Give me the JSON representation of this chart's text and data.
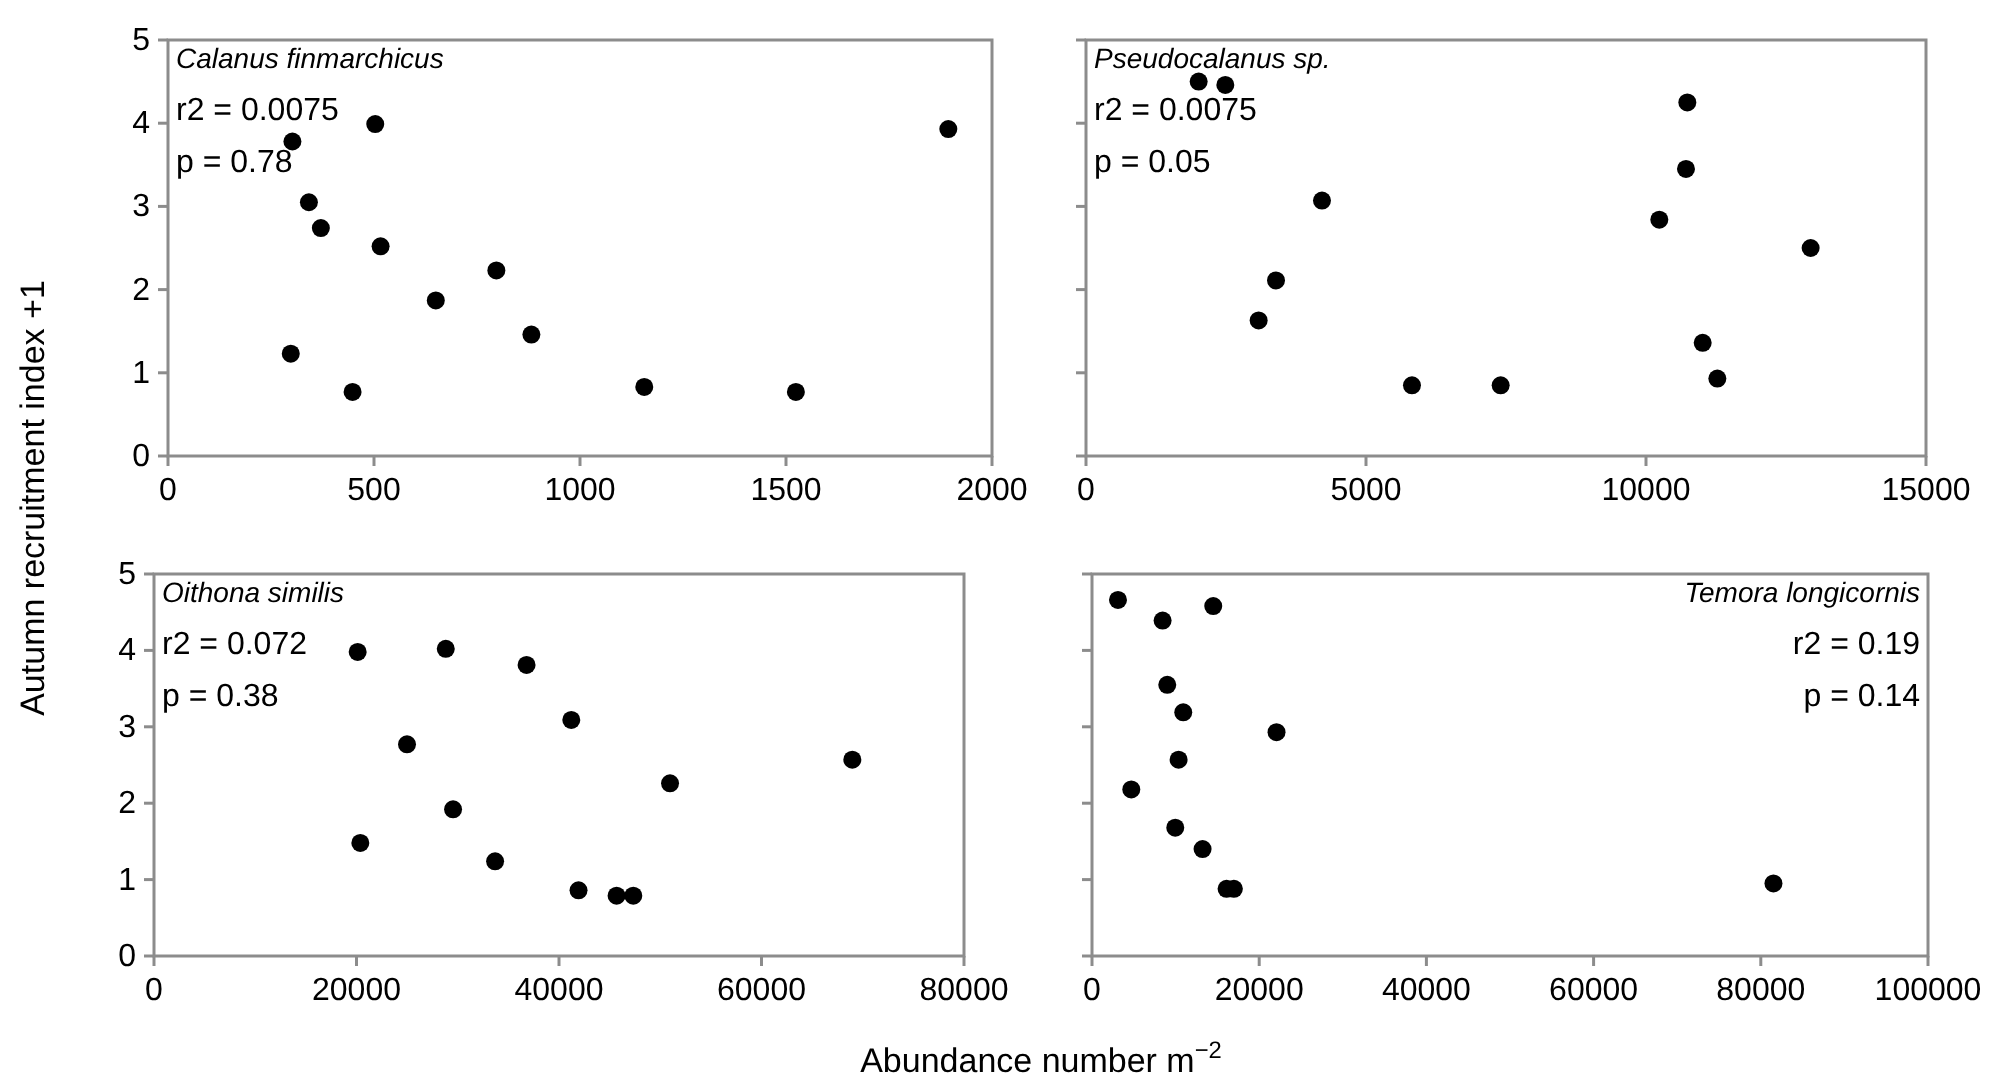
{
  "chart_data": [
    {
      "type": "scatter",
      "ylabel": "Autumn recruitment index +1",
      "annotations": [
        "Calanus finmarchicus",
        "r2 = 0.0075",
        "p = 0.78"
      ],
      "xlim": [
        0,
        2000
      ],
      "xticks": [
        0,
        500,
        1000,
        1500,
        2000
      ],
      "ylim": [
        0,
        5
      ],
      "yticks": [
        0,
        1,
        2,
        3,
        4,
        5
      ],
      "marker": "circle",
      "grid": false,
      "series": [
        {
          "color": "#000000",
          "x": [
            302,
            503,
            1894,
            342,
            371,
            516,
            797,
            650,
            882,
            298,
            448,
            1156,
            1524
          ],
          "values": [
            3.78,
            3.99,
            3.93,
            3.05,
            2.74,
            2.52,
            2.23,
            1.87,
            1.46,
            1.23,
            0.77,
            0.83,
            0.77
          ]
        }
      ]
    },
    {
      "type": "scatter",
      "annotations": [
        "Pseudocalanus sp.",
        "r2 = 0.0075",
        "p = 0.05"
      ],
      "xlim": [
        0,
        15000
      ],
      "xticks": [
        0,
        5000,
        10000,
        15000
      ],
      "ylim": [
        0,
        5
      ],
      "yticks": [
        {
          "value": 0,
          "label": null
        },
        {
          "value": 1,
          "label": null
        },
        {
          "value": 2,
          "label": null
        },
        {
          "value": 3,
          "label": null
        },
        {
          "value": 4,
          "label": null
        },
        {
          "value": 5,
          "label": null
        }
      ],
      "tick_labels": "x",
      "marker": "circle",
      "grid": false,
      "series": [
        {
          "color": "#000000",
          "x": [
            2012,
            2488,
            10738,
            10714,
            4214,
            10238,
            12940,
            3393,
            3083,
            11012,
            11274,
            5821,
            7405
          ],
          "values": [
            4.5,
            4.46,
            4.25,
            3.45,
            3.07,
            2.84,
            2.5,
            2.11,
            1.63,
            1.36,
            0.93,
            0.85,
            0.85
          ]
        }
      ]
    },
    {
      "type": "scatter",
      "xlabel": "Abundance number m$^{−2}$",
      "annotations": [
        "Oithona similis",
        "r2 = 0.072",
        "p = 0.38"
      ],
      "xlim": [
        0,
        80000
      ],
      "xticks": [
        0,
        20000,
        40000,
        60000,
        80000
      ],
      "ylim": [
        0,
        5
      ],
      "yticks": [
        0,
        1,
        2,
        3,
        4,
        5
      ],
      "marker": "circle",
      "grid": false,
      "series": [
        {
          "color": "#000000",
          "x": [
            20115,
            28818,
            36797,
            41214,
            24988,
            68970,
            50965,
            29538,
            20379,
            33689,
            41930,
            45688,
            47337
          ],
          "values": [
            3.98,
            4.02,
            3.81,
            3.09,
            2.77,
            2.57,
            2.26,
            1.92,
            1.48,
            1.24,
            0.86,
            0.79,
            0.79
          ]
        }
      ]
    },
    {
      "type": "scatter",
      "annotations": [
        "Temora longicornis",
        "r2 = 0.19",
        "p = 0.14"
      ],
      "xlim": [
        0,
        100000
      ],
      "xticks": [
        0,
        20000,
        40000,
        60000,
        80000,
        100000
      ],
      "ylim": [
        0,
        5
      ],
      "yticks": [
        {
          "value": 0,
          "label": null
        },
        {
          "value": 1,
          "label": null
        },
        {
          "value": 2,
          "label": null
        },
        {
          "value": 3,
          "label": null
        },
        {
          "value": 4,
          "label": null
        },
        {
          "value": 5,
          "label": null
        }
      ],
      "tick_labels": "x",
      "marker": "circle",
      "grid": false,
      "series": [
        {
          "color": "#000000",
          "x": [
            3108,
            14502,
            8446,
            9004,
            10916,
            22072,
            10359,
            4701,
            9960,
            13227,
            16096,
            16972,
            81514
          ],
          "values": [
            4.66,
            4.58,
            4.39,
            3.55,
            3.19,
            2.93,
            2.57,
            2.18,
            1.68,
            1.4,
            0.88,
            0.88,
            0.95
          ]
        }
      ]
    }
  ]
}
